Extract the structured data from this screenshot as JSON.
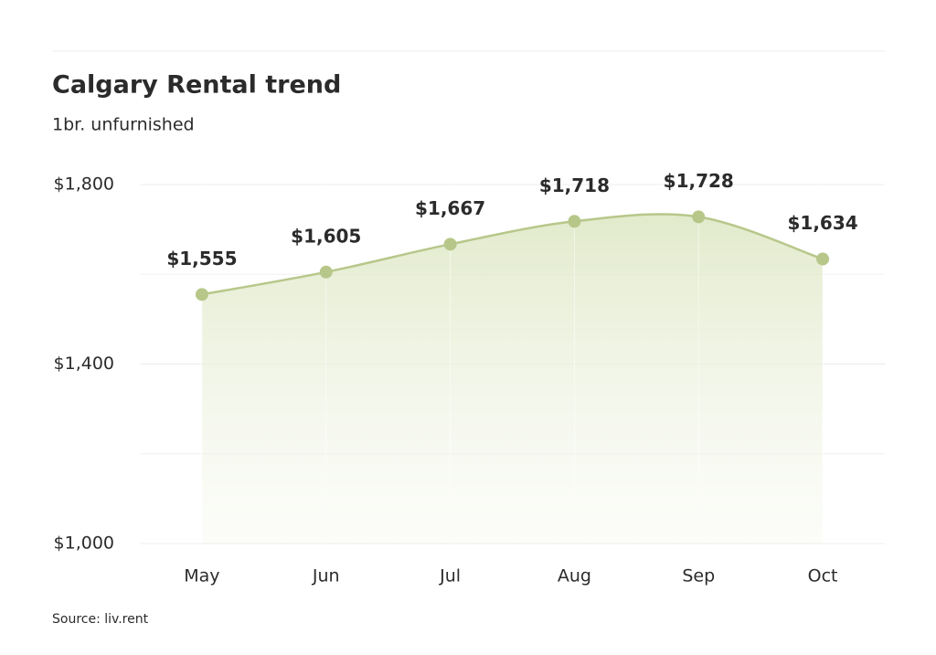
{
  "chart_data": {
    "type": "area-line",
    "title": "Calgary Rental trend",
    "subtitle": "1br. unfurnished",
    "source": "Source: liv.rent",
    "categories": [
      "May",
      "Jun",
      "Jul",
      "Aug",
      "Sep",
      "Oct"
    ],
    "values": [
      1555,
      1605,
      1667,
      1718,
      1728,
      1634
    ],
    "value_labels": [
      "$1,555",
      "$1,605",
      "$1,667",
      "$1,718",
      "$1,728",
      "$1,634"
    ],
    "color": "#b7c78a",
    "ylim": [
      1000,
      1800
    ],
    "yticks": [
      {
        "value": 1000,
        "label": "$1,000"
      },
      {
        "value": 1400,
        "label": "$1,400"
      },
      {
        "value": 1800,
        "label": "$1,800"
      }
    ],
    "yminor": [
      1200,
      1600
    ],
    "grid": true
  }
}
